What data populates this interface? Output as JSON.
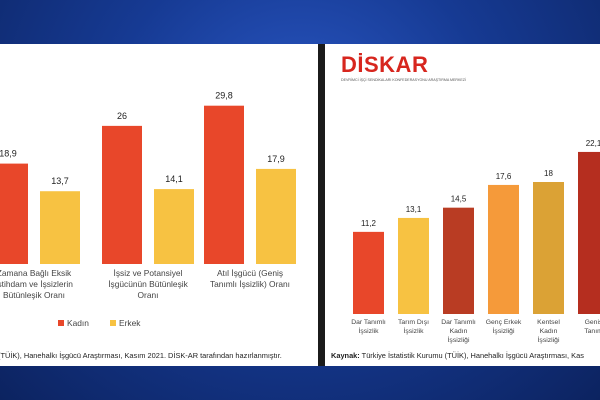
{
  "left": {
    "legend": [
      {
        "name": "Kadın",
        "color": "#e8472a"
      },
      {
        "name": "Erkek",
        "color": "#f7c242"
      }
    ],
    "source_text": "(TÜİK), Hanehalkı İşgücü Araştırması, Kasım 2021. DİSK-AR tarafından hazırlanmıştır."
  },
  "right": {
    "logo_text": "DİSKAR",
    "logo_tagline": "DEVRİMCİ İŞÇİ SENDİKALARI KONFEDERASYONU ARAŞTIRMA MERKEZİ",
    "source_label": "Kaynak:",
    "source_text": " Türkiye İstatistik Kurumu (TÜİK), Hanehalkı İşgücü Araştırması, Kas"
  },
  "chart_data": [
    {
      "type": "bar",
      "categories": [
        [
          "Zamana Bağlı Eksik",
          "İstihdam ve İşsizlerin",
          "Bütünleşik Oranı"
        ],
        [
          "İşsiz ve Potansiyel",
          "İşgücünün Bütünleşik",
          "Oranı"
        ],
        [
          "Atıl İşgücü (Geniş",
          "Tanımlı İşsizlik) Oranı"
        ]
      ],
      "series": [
        {
          "name": "Kadın",
          "values": [
            18.9,
            26,
            29.8
          ],
          "labels": [
            "18,9",
            "26",
            "29,8"
          ],
          "color": "#e8472a"
        },
        {
          "name": "Erkek",
          "values": [
            13.7,
            14.1,
            17.9
          ],
          "labels": [
            "13,7",
            "14,1",
            "17,9"
          ],
          "color": "#f7c242"
        }
      ],
      "ylim": [
        0,
        32
      ],
      "grid": false,
      "legend": "bottom"
    },
    {
      "type": "bar",
      "categories": [
        [
          "Dar Tanımlı",
          "İşsizlik"
        ],
        [
          "Tarım Dışı",
          "İşsizlik"
        ],
        [
          "Dar Tanımlı",
          "Kadın",
          "İşsizliği"
        ],
        [
          "Genç Erkek",
          "İşsizliği"
        ],
        [
          "Kentsel",
          "Kadın",
          "İşsizliği"
        ],
        [
          "Geniş",
          "Tanım"
        ]
      ],
      "values": [
        11.2,
        13.1,
        14.5,
        17.6,
        18,
        22.1
      ],
      "labels": [
        "11,2",
        "13,1",
        "14,5",
        "17,6",
        "18",
        "22,1"
      ],
      "colors": [
        "#e8472a",
        "#f7c242",
        "#b93c23",
        "#f59a3a",
        "#dba235",
        "#b52e1f"
      ],
      "ylim": [
        0,
        24
      ],
      "grid": false
    }
  ]
}
